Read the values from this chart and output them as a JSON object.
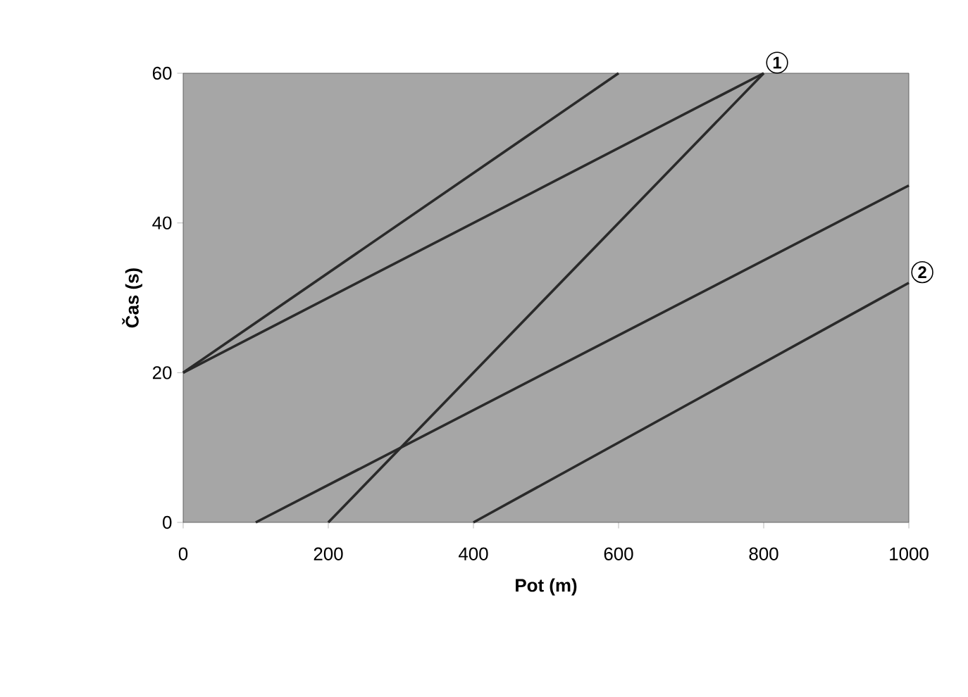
{
  "chart_data": {
    "type": "line",
    "xlabel": "Pot (m)",
    "ylabel": "Čas (s)",
    "xlim": [
      0,
      1000
    ],
    "ylim": [
      0,
      60
    ],
    "xticks": [
      0,
      200,
      400,
      600,
      800,
      1000
    ],
    "yticks": [
      0,
      20,
      40,
      60
    ],
    "marker": "none",
    "line_style": "solid",
    "series": [
      {
        "color": "#2a2a2a",
        "x": [
          0,
          600
        ],
        "values": [
          20,
          60
        ]
      },
      {
        "color": "#2a2a2a",
        "x": [
          0,
          800
        ],
        "values": [
          20,
          60
        ]
      },
      {
        "color": "#2a2a2a",
        "x": [
          200,
          800
        ],
        "values": [
          0,
          60
        ]
      },
      {
        "color": "#2a2a2a",
        "x": [
          100,
          1000
        ],
        "values": [
          0,
          45
        ]
      },
      {
        "color": "#2a2a2a",
        "x": [
          400,
          1000
        ],
        "values": [
          0,
          32
        ]
      }
    ],
    "annotations": [
      {
        "text": "1",
        "x": 800,
        "y": 60
      },
      {
        "text": "2",
        "x": 1000,
        "y": 32
      }
    ]
  }
}
